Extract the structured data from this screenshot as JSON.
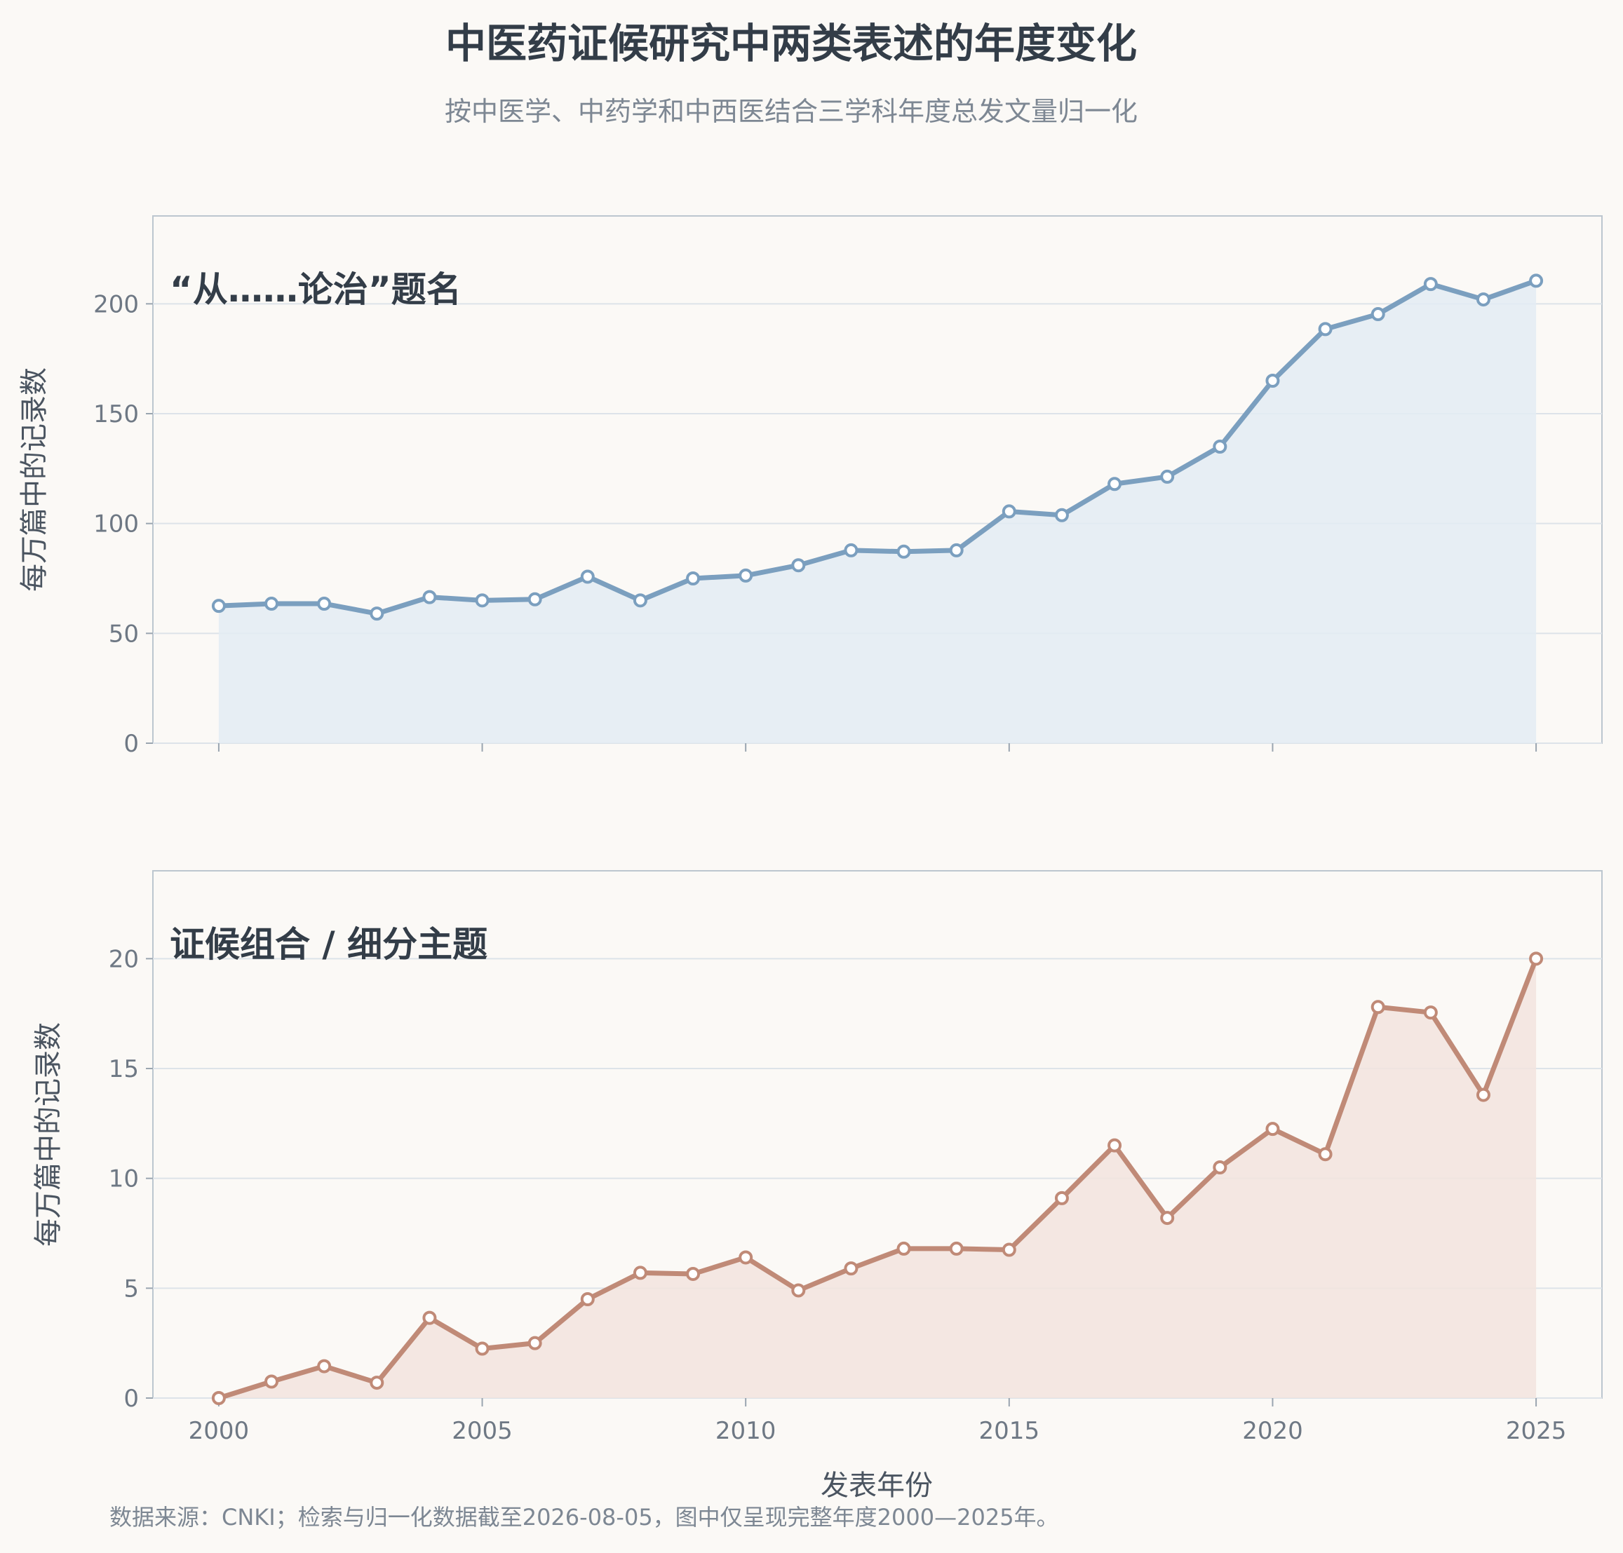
{
  "chart_data": {
    "type": "area",
    "title": "中医药证候研究中两类表述的年度变化",
    "subtitle": "按中医学、中药学和中西医结合三学科年度总发文量归一化",
    "xlabel": "发表年份",
    "ylabel": "每万篇中的记录数",
    "footnote": "数据来源：CNKI；检索与归一化数据截至2026-08-05，图中仅呈现完整年度2000—2025年。",
    "x": [
      2000,
      2001,
      2002,
      2003,
      2004,
      2005,
      2006,
      2007,
      2008,
      2009,
      2010,
      2011,
      2012,
      2013,
      2014,
      2015,
      2016,
      2017,
      2018,
      2019,
      2020,
      2021,
      2022,
      2023,
      2024,
      2025
    ],
    "xlim": [
      1998.75,
      2026.25
    ],
    "xticks": [
      "2000",
      "2005",
      "2010",
      "2015",
      "2020",
      "2025"
    ],
    "grid": true,
    "panels": [
      {
        "label": "“从……论治”题名",
        "color": "#7b9fbf",
        "fill": "#e3ecf3",
        "ylim": [
          0,
          240
        ],
        "yticks": [
          "0",
          "50",
          "100",
          "150",
          "200"
        ],
        "values": [
          62.5,
          63.5,
          63.5,
          59.0,
          66.5,
          65.0,
          65.5,
          75.8,
          65.0,
          75.0,
          76.3,
          81.0,
          87.8,
          87.2,
          87.8,
          105.5,
          103.8,
          118.0,
          121.3,
          135.0,
          165.0,
          188.5,
          195.3,
          209.0,
          202.0,
          210.5
        ]
      },
      {
        "label": "证候组合 / 细分主题",
        "color": "#c08a77",
        "fill": "#f2e4de",
        "ylim": [
          0,
          24
        ],
        "yticks": [
          "0",
          "5",
          "10",
          "15",
          "20"
        ],
        "values": [
          0.0,
          0.75,
          1.45,
          0.7,
          3.65,
          2.25,
          2.5,
          4.5,
          5.7,
          5.65,
          6.4,
          4.9,
          5.9,
          6.8,
          6.8,
          6.75,
          9.1,
          11.5,
          8.2,
          10.5,
          12.25,
          11.1,
          17.8,
          17.55,
          13.8,
          20.0
        ]
      }
    ]
  }
}
